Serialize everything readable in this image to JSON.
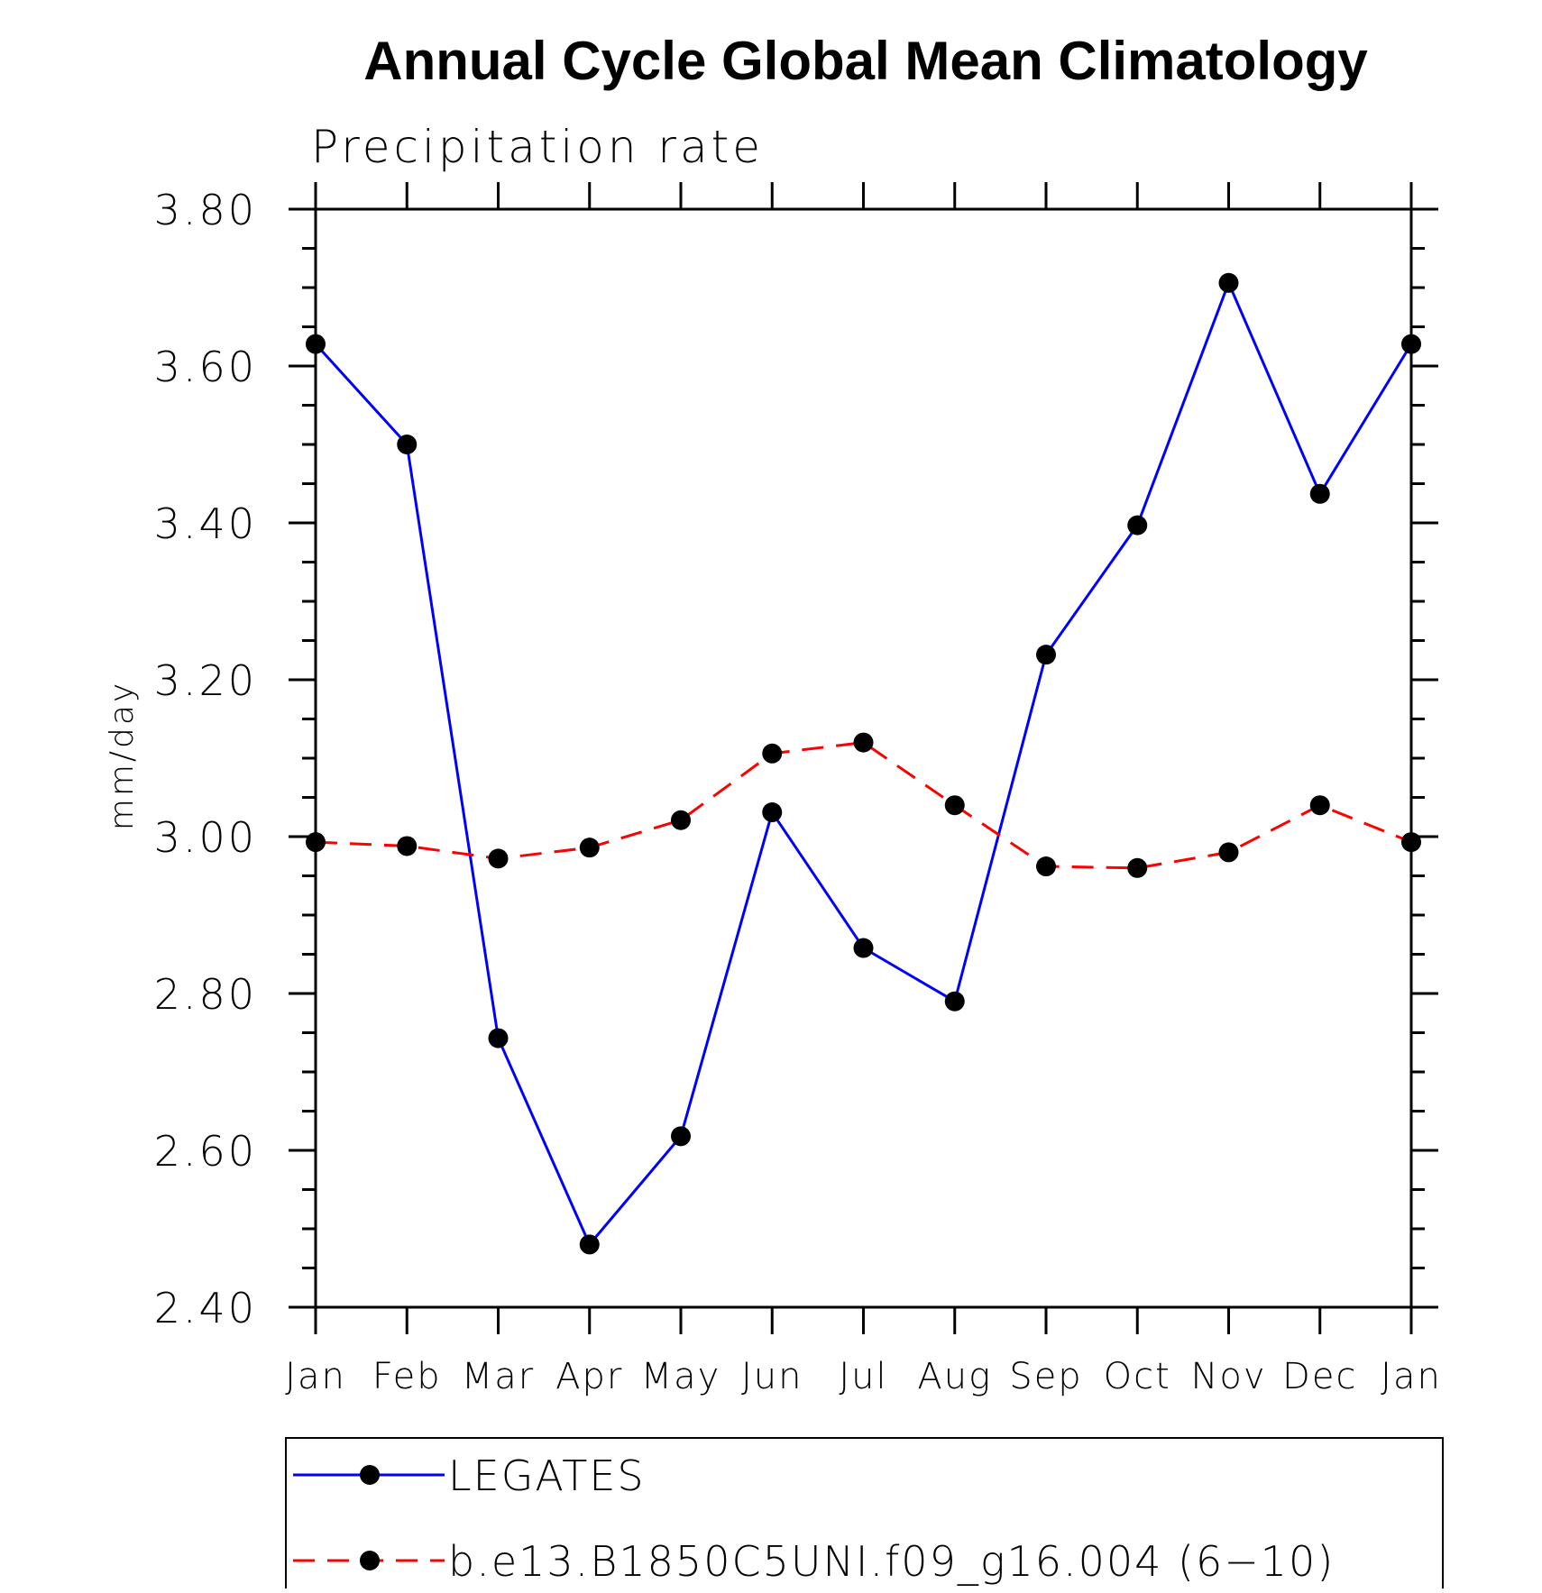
{
  "chart_data": {
    "type": "line",
    "title": "Annual Cycle Global Mean Climatology",
    "subtitle": "Precipitation rate",
    "xlabel": "",
    "ylabel": "mm/day",
    "categories": [
      "Jan",
      "Feb",
      "Mar",
      "Apr",
      "May",
      "Jun",
      "Jul",
      "Aug",
      "Sep",
      "Oct",
      "Nov",
      "Dec",
      "Jan"
    ],
    "ylim": [
      2.4,
      3.8
    ],
    "yticks": [
      "2.40",
      "2.60",
      "2.80",
      "3.00",
      "3.20",
      "3.40",
      "3.60",
      "3.80"
    ],
    "grid": false,
    "legend_position": "bottom",
    "series": [
      {
        "name": "LEGATES",
        "color": "#0000ff",
        "line_style": "solid",
        "marker": "filled-circle",
        "values": [
          3.628,
          3.5,
          2.743,
          2.48,
          2.618,
          3.031,
          2.858,
          2.79,
          3.232,
          3.397,
          3.706,
          3.437,
          3.628
        ]
      },
      {
        "name": "b.e13.B1850C5UNI.f09_g16.004 (6−10)",
        "color": "#ff0000",
        "line_style": "dashed",
        "marker": "filled-circle",
        "values": [
          2.993,
          2.988,
          2.972,
          2.986,
          3.021,
          3.106,
          3.12,
          3.04,
          2.962,
          2.96,
          2.98,
          3.04,
          2.993
        ]
      }
    ]
  }
}
